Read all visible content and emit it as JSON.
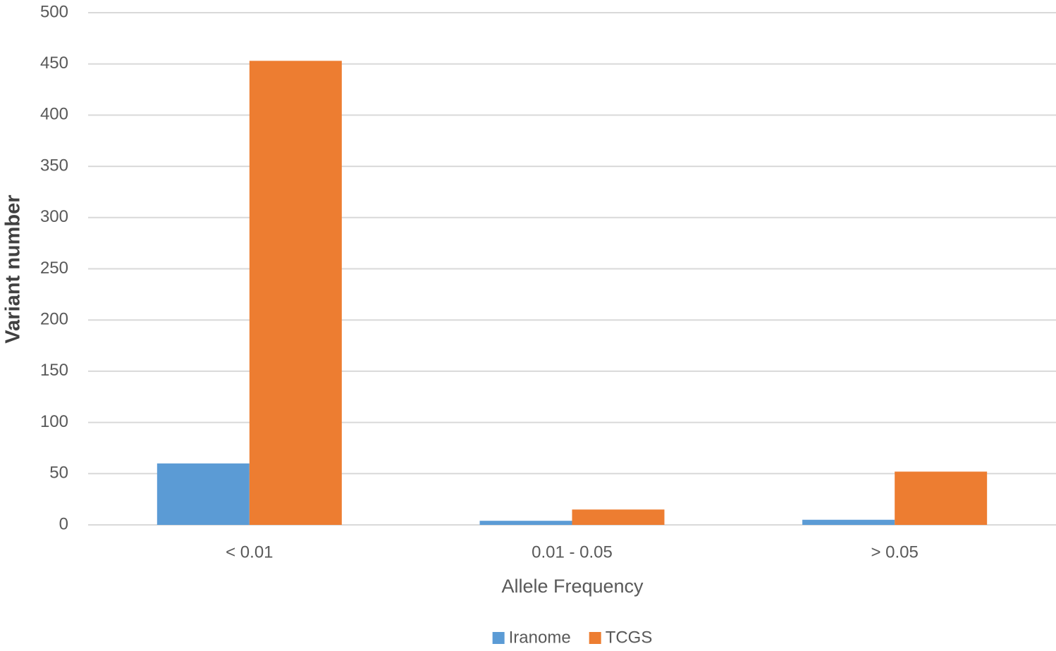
{
  "chart_data": {
    "type": "bar",
    "x_label": "Allele Frequency",
    "y_label": "Variant number",
    "categories": [
      "< 0.01",
      "0.01 - 0.05",
      "> 0.05"
    ],
    "series": [
      {
        "name": "Iranome",
        "color": "#5b9bd5",
        "values": [
          60,
          4,
          5
        ]
      },
      {
        "name": "TCGS",
        "color": "#ed7d31",
        "values": [
          453,
          15,
          52
        ]
      }
    ],
    "ylim": [
      0,
      500
    ],
    "yticks": [
      0,
      50,
      100,
      150,
      200,
      250,
      300,
      350,
      400,
      450,
      500
    ],
    "grid": true,
    "legend": "bottom"
  }
}
